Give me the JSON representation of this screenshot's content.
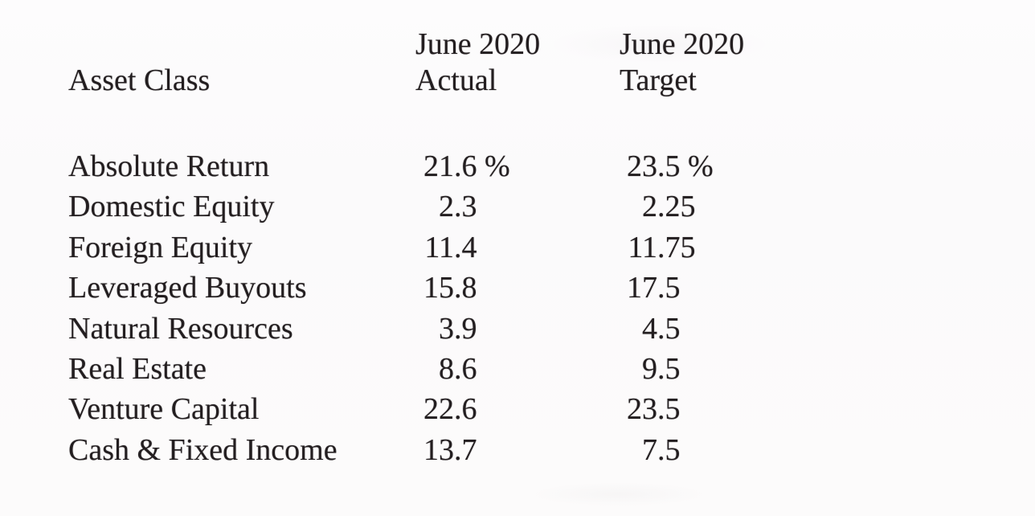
{
  "document": {
    "colors": {
      "background": "#fcfbfb",
      "text": "#231e20"
    },
    "table": {
      "header": {
        "asset": "Asset Class",
        "actual_line1": "June 2020",
        "actual_line2": "Actual",
        "target_line1": "June 2020",
        "target_line2": "Target"
      },
      "rows": [
        {
          "asset": "Absolute Return",
          "actual": "21.6 %",
          "target": "23.5 %"
        },
        {
          "asset": "Domestic Equity",
          "actual": "2.3",
          "target": "2.25"
        },
        {
          "asset": "Foreign Equity",
          "actual": "11.4",
          "target": "11.75"
        },
        {
          "asset": "Leveraged Buyouts",
          "actual": "15.8",
          "target": "17.5"
        },
        {
          "asset": "Natural Resources",
          "actual": "3.9",
          "target": "4.5"
        },
        {
          "asset": "Real Estate",
          "actual": "8.6",
          "target": "9.5"
        },
        {
          "asset": "Venture Capital",
          "actual": "22.6",
          "target": "23.5"
        },
        {
          "asset": "Cash & Fixed Income",
          "actual": "13.7",
          "target": "7.5"
        }
      ]
    }
  }
}
